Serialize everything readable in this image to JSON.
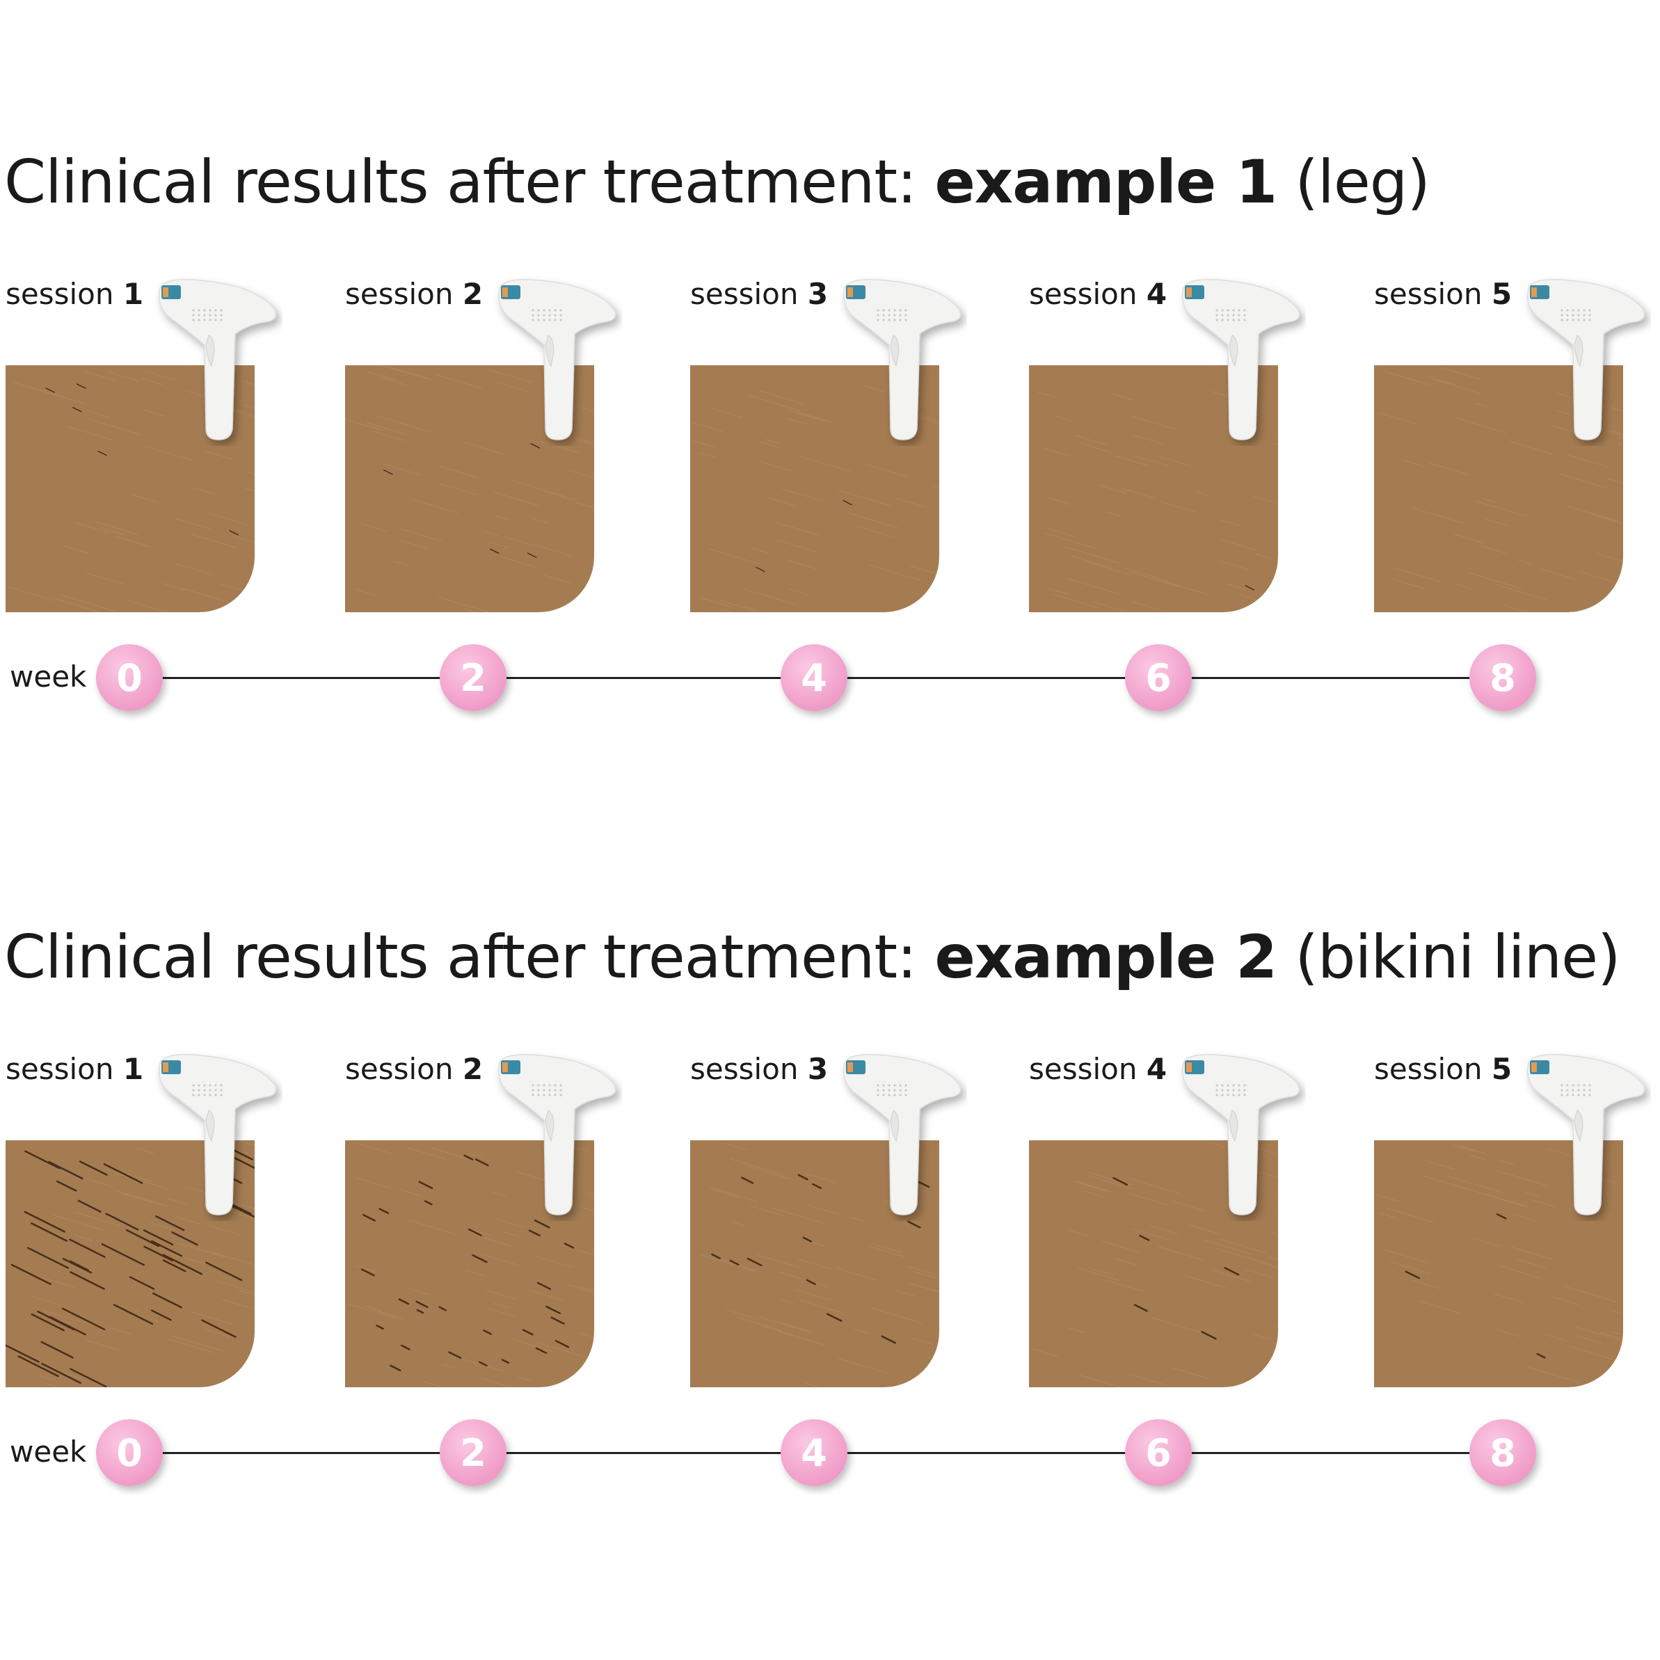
{
  "colors": {
    "skin": "#a57c52",
    "week_dot": "#f09cc8",
    "text": "#1a1a1a"
  },
  "examples": [
    {
      "title_prefix": "Clinical results after treatment: ",
      "title_bold": "example 1",
      "title_suffix": " (leg)",
      "session_word": "session",
      "sessions": [
        "1",
        "2",
        "3",
        "4",
        "5"
      ],
      "week_label": "week",
      "weeks": [
        "0",
        "2",
        "4",
        "6",
        "8"
      ]
    },
    {
      "title_prefix": "Clinical results after treatment: ",
      "title_bold": "example 2",
      "title_suffix": " (bikini line)",
      "session_word": "session",
      "sessions": [
        "1",
        "2",
        "3",
        "4",
        "5"
      ],
      "week_label": "week",
      "weeks": [
        "0",
        "2",
        "4",
        "6",
        "8"
      ]
    }
  ],
  "icons": {
    "device": "ipl-device-icon"
  }
}
